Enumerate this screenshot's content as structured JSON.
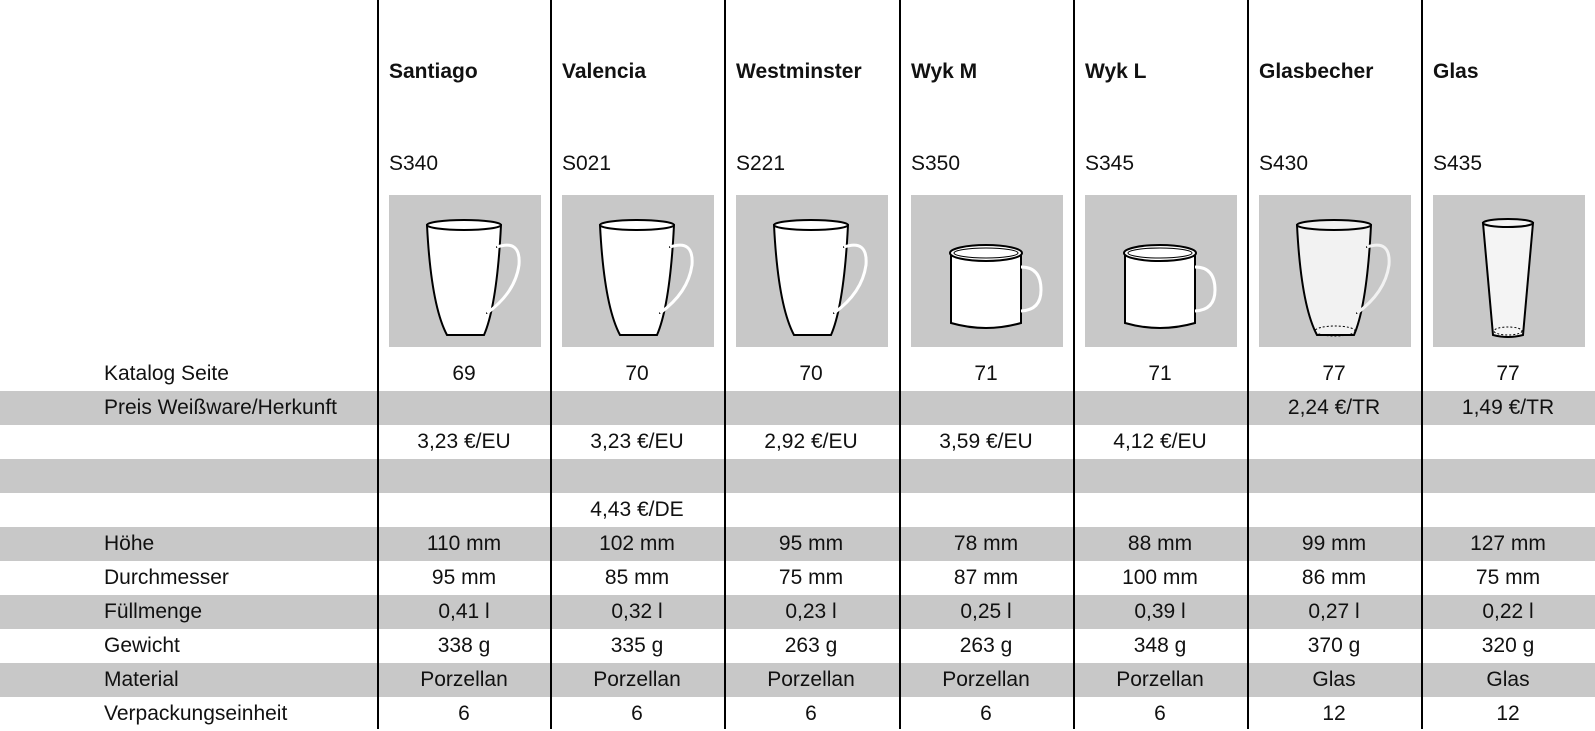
{
  "row_labels": [
    "Katalog Seite",
    "Preis Weißware/Herkunft",
    null,
    null,
    null,
    "Höhe",
    "Durchmesser",
    "Füllmenge",
    "Gewicht",
    "Material",
    "Verpackungseinheit"
  ],
  "products": [
    {
      "name": "Santiago",
      "code": "S340",
      "cells": [
        69,
        null,
        "3,23 €/EU",
        null,
        null,
        "110 mm",
        "95 mm",
        "0,41 l",
        "338 g",
        "Porzellan",
        6
      ]
    },
    {
      "name": "Valencia",
      "code": "S021",
      "cells": [
        70,
        null,
        "3,23 €/EU",
        null,
        "4,43 €/DE",
        "102 mm",
        "85 mm",
        "0,32 l",
        "335 g",
        "Porzellan",
        6
      ]
    },
    {
      "name": "Westminster",
      "code": "S221",
      "cells": [
        70,
        null,
        "2,92 €/EU",
        null,
        null,
        "95 mm",
        "75 mm",
        "0,23 l",
        "263 g",
        "Porzellan",
        6
      ]
    },
    {
      "name": "Wyk M",
      "code": "S350",
      "cells": [
        71,
        null,
        "3,59 €/EU",
        null,
        null,
        "78 mm",
        "87 mm",
        "0,25 l",
        "263 g",
        "Porzellan",
        6
      ]
    },
    {
      "name": "Wyk L",
      "code": "S345",
      "cells": [
        71,
        null,
        "4,12 €/EU",
        null,
        null,
        "88 mm",
        "100 mm",
        "0,39 l",
        "348 g",
        "Porzellan",
        6
      ]
    },
    {
      "name": "Glasbecher",
      "code": "S430",
      "cells": [
        77,
        "2,24 €/TR",
        null,
        null,
        null,
        "99 mm",
        "86 mm",
        "0,27 l",
        "370 g",
        "Glas",
        12
      ]
    },
    {
      "name": "Glas",
      "code": "S435",
      "cells": [
        77,
        "1,49 €/TR",
        null,
        null,
        null,
        "127 mm",
        "75 mm",
        "0,22 l",
        "320 g",
        "Glas",
        12
      ]
    }
  ]
}
